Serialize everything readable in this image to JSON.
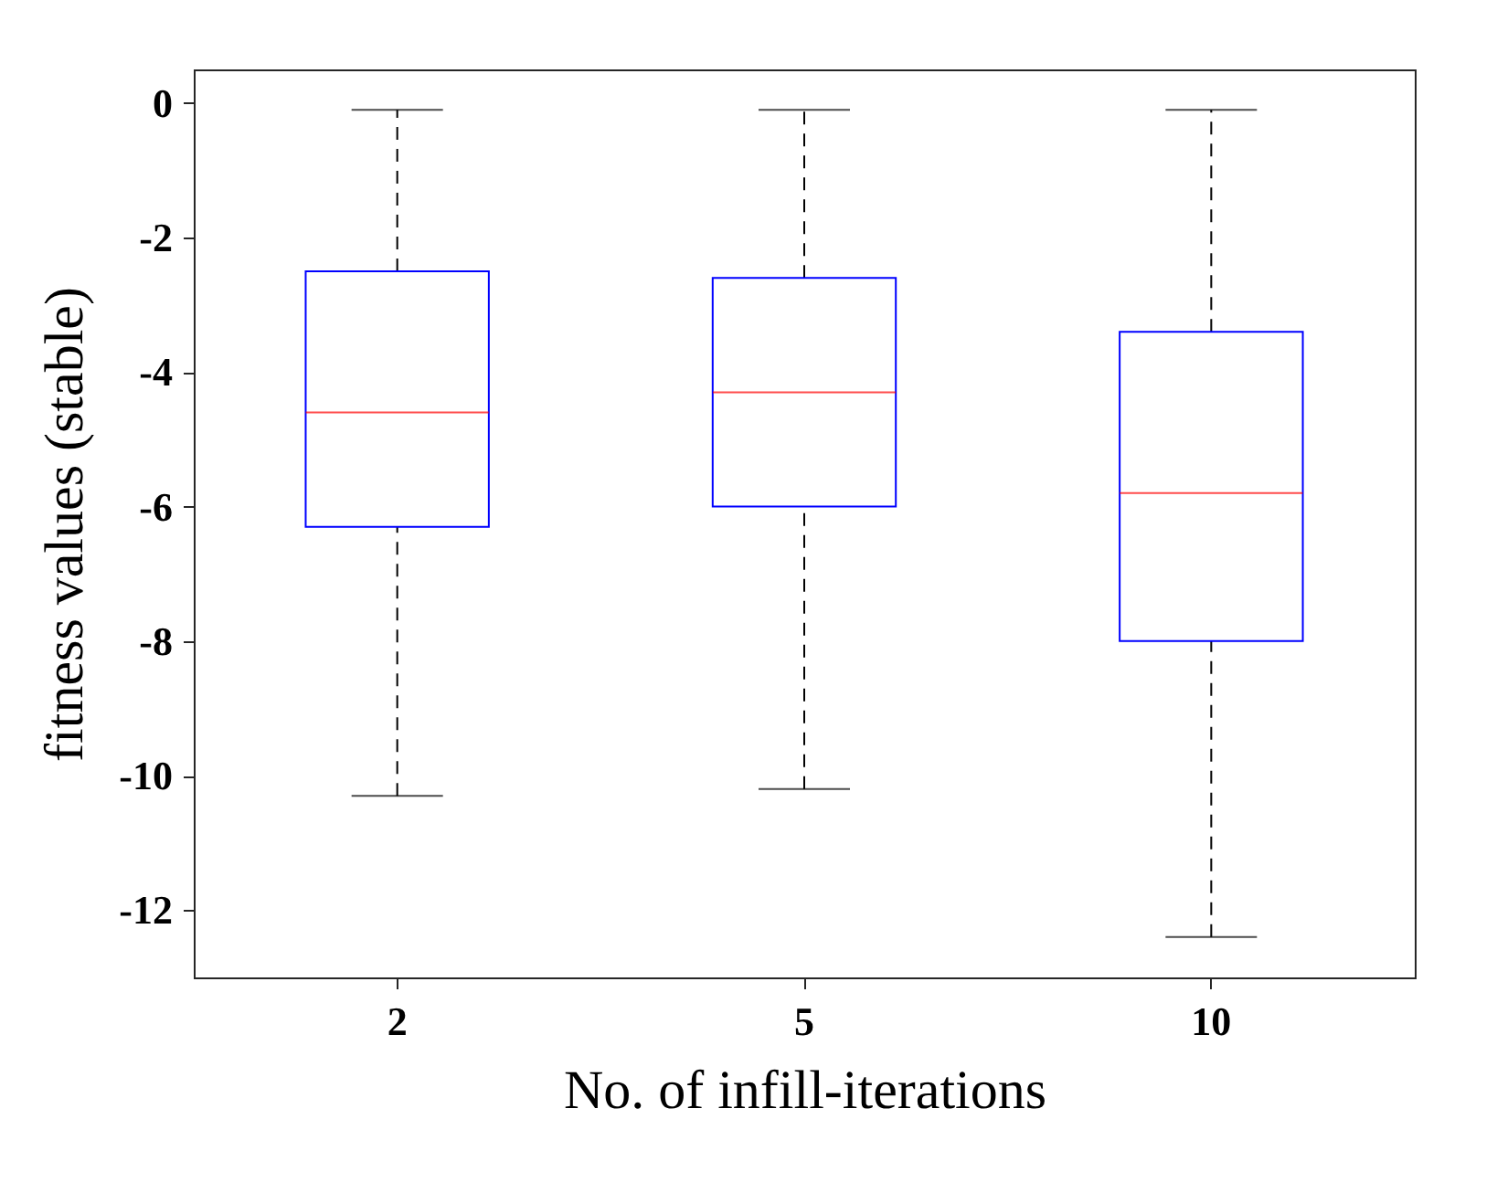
{
  "chart_data": {
    "type": "box",
    "xlabel": "No. of infill-iterations",
    "ylabel": "fitness values (stable)",
    "categories": [
      "2",
      "5",
      "10"
    ],
    "boxes": [
      {
        "low": -10.3,
        "q1": -6.3,
        "median": -4.6,
        "q3": -2.5,
        "high": -0.1
      },
      {
        "low": -10.2,
        "q1": -6.0,
        "median": -4.3,
        "q3": -2.6,
        "high": -0.1
      },
      {
        "low": -12.4,
        "q1": -8.0,
        "median": -5.8,
        "q3": -3.4,
        "high": -0.1
      }
    ],
    "color": "#0000ff",
    "line_style": "dashed",
    "ylim": [
      -13,
      0.5
    ],
    "yticks": [
      -12,
      -10,
      -8,
      -6,
      -4,
      -2,
      0
    ],
    "grid": false
  }
}
